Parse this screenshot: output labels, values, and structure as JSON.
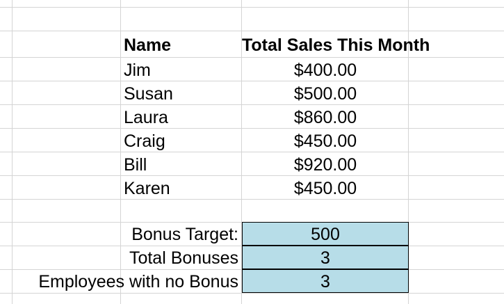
{
  "table": {
    "headers": {
      "name": "Name",
      "sales": "Total Sales This Month"
    },
    "rows": [
      {
        "name": "Jim",
        "sales": "$400.00"
      },
      {
        "name": "Susan",
        "sales": "$500.00"
      },
      {
        "name": "Laura",
        "sales": "$860.00"
      },
      {
        "name": "Craig",
        "sales": "$450.00"
      },
      {
        "name": "Bill",
        "sales": "$920.00"
      },
      {
        "name": "Karen",
        "sales": "$450.00"
      }
    ]
  },
  "summary": [
    {
      "label": "Bonus Target:",
      "value": "500"
    },
    {
      "label": "Total Bonuses",
      "value": "3"
    },
    {
      "label": "Employees with no Bonus",
      "value": "3"
    }
  ],
  "colors": {
    "highlight_fill": "#b7dde8",
    "gridline": "#d4d4d4"
  }
}
